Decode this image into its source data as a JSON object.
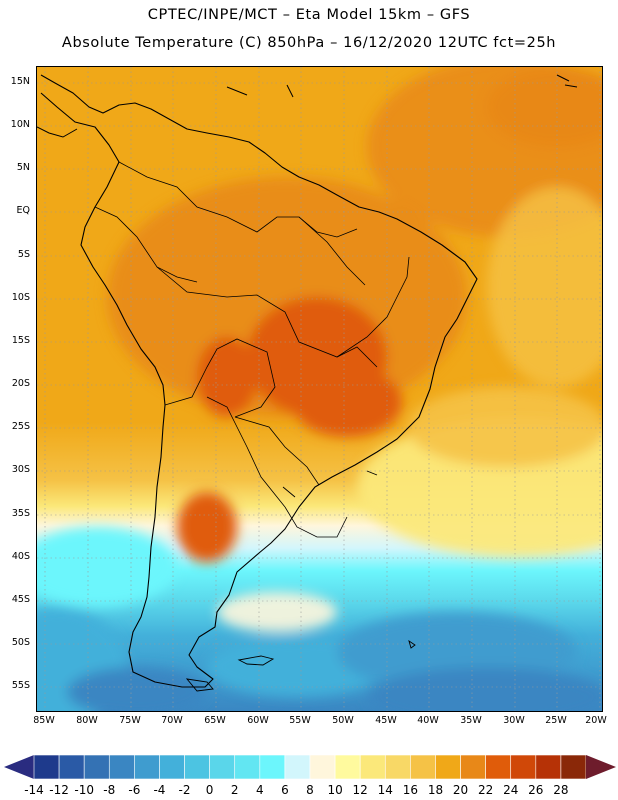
{
  "title": {
    "line1": "CPTEC/INPE/MCT –  Eta Model 15km – GFS",
    "line2": "Absolute Temperature (C) 850hPa – 16/12/2020 12UTC fct=25h"
  },
  "map": {
    "region": "South America",
    "field": "Absolute Temperature (C) 850hPa",
    "lat_labels": [
      "15N",
      "10N",
      "5N",
      "EQ",
      "5S",
      "10S",
      "15S",
      "20S",
      "25S",
      "30S",
      "35S",
      "40S",
      "45S",
      "50S",
      "55S"
    ],
    "lon_labels": [
      "85W",
      "80W",
      "75W",
      "70W",
      "65W",
      "60W",
      "55W",
      "50W",
      "45W",
      "40W",
      "35W",
      "30W",
      "25W",
      "20W"
    ]
  },
  "colorbar": {
    "labels": [
      "-14",
      "-12",
      "-10",
      "-8",
      "-6",
      "-4",
      "-2",
      "0",
      "2",
      "4",
      "6",
      "8",
      "10",
      "12",
      "14",
      "16",
      "18",
      "20",
      "22",
      "24",
      "26",
      "28"
    ],
    "colors": [
      "#1e3a8c",
      "#2a5aa6",
      "#3472b4",
      "#3a86c2",
      "#3f9ccf",
      "#43b0da",
      "#4cc4e2",
      "#5ad6ea",
      "#62e6f2",
      "#6cf6fc",
      "#d2f6fc",
      "#fff6dc",
      "#fffa9e",
      "#fbe87a",
      "#f8d866",
      "#f5c246",
      "#f0a818",
      "#e88818",
      "#e05c0a",
      "#d04808",
      "#b63206",
      "#8a2808"
    ],
    "left_end_color": "#2a2c80",
    "right_end_color": "#6e1c2c"
  },
  "colors": {
    "land_border": "#000000",
    "grid": "#9a9a9a"
  }
}
